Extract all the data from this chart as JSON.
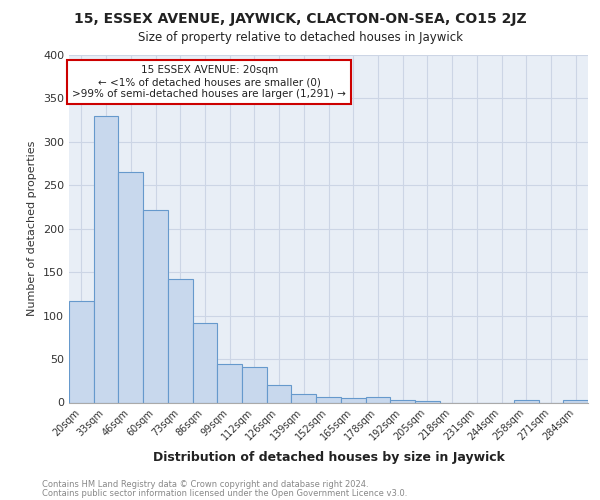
{
  "title1": "15, ESSEX AVENUE, JAYWICK, CLACTON-ON-SEA, CO15 2JZ",
  "title2": "Size of property relative to detached houses in Jaywick",
  "xlabel": "Distribution of detached houses by size in Jaywick",
  "ylabel": "Number of detached properties",
  "categories": [
    "20sqm",
    "33sqm",
    "46sqm",
    "60sqm",
    "73sqm",
    "86sqm",
    "99sqm",
    "112sqm",
    "126sqm",
    "139sqm",
    "152sqm",
    "165sqm",
    "178sqm",
    "192sqm",
    "205sqm",
    "218sqm",
    "231sqm",
    "244sqm",
    "258sqm",
    "271sqm",
    "284sqm"
  ],
  "values": [
    117,
    330,
    265,
    222,
    142,
    92,
    44,
    41,
    20,
    10,
    6,
    5,
    6,
    3,
    2,
    0,
    0,
    0,
    3,
    0,
    3
  ],
  "bar_color": "#c8d8ed",
  "bar_edge_color": "#6699cc",
  "annotation_title": "15 ESSEX AVENUE: 20sqm",
  "annotation_line1": "← <1% of detached houses are smaller (0)",
  "annotation_line2": ">99% of semi-detached houses are larger (1,291) →",
  "annotation_box_color": "#ffffff",
  "annotation_box_edge": "#cc0000",
  "grid_color": "#ccd5e5",
  "bg_color": "#e8eef6",
  "footer1": "Contains HM Land Registry data © Crown copyright and database right 2024.",
  "footer2": "Contains public sector information licensed under the Open Government Licence v3.0.",
  "ylim": [
    0,
    400
  ],
  "yticks": [
    0,
    50,
    100,
    150,
    200,
    250,
    300,
    350,
    400
  ]
}
